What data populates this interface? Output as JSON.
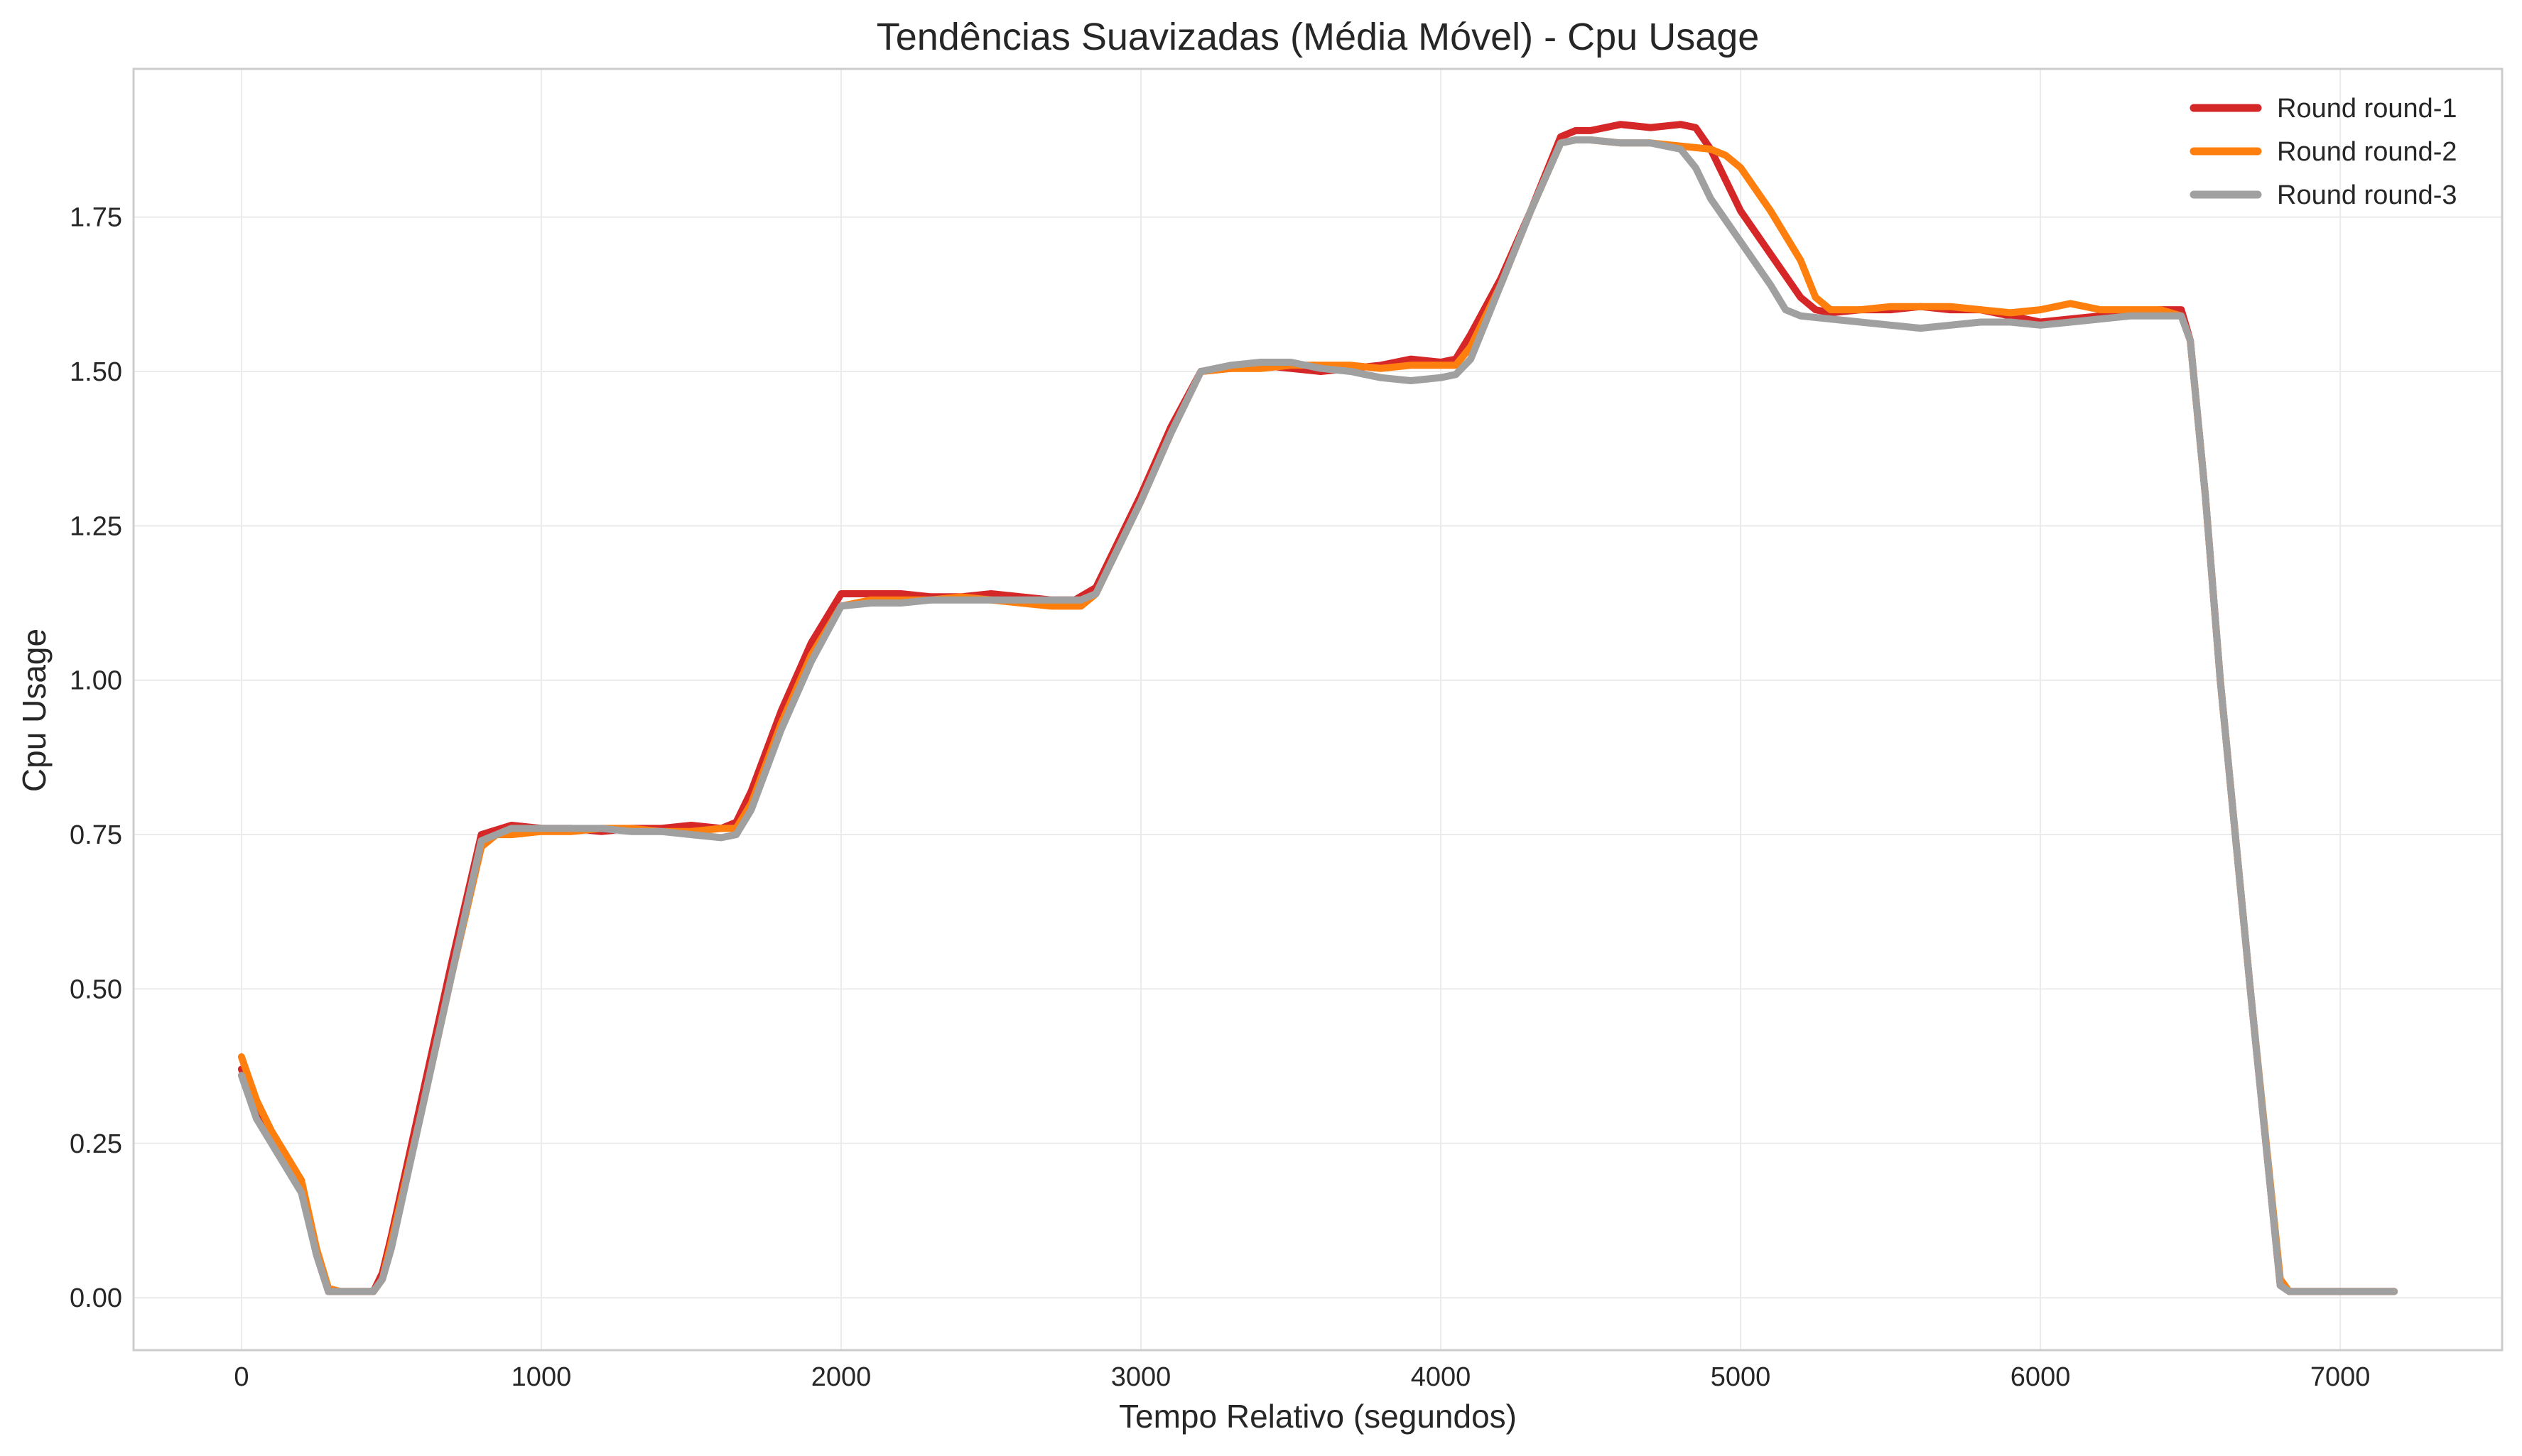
{
  "chart_data": {
    "type": "line",
    "title": "Tendências Suavizadas (Média Móvel) - Cpu Usage",
    "xlabel": "Tempo Relativo (segundos)",
    "ylabel": "Cpu Usage",
    "xlim": [
      -360,
      7540
    ],
    "ylim": [
      -0.085,
      1.99
    ],
    "xticks": [
      0,
      1000,
      2000,
      3000,
      4000,
      5000,
      6000,
      7000
    ],
    "xtick_labels": [
      "0",
      "1000",
      "2000",
      "3000",
      "4000",
      "5000",
      "6000",
      "7000"
    ],
    "yticks": [
      0,
      0.25,
      0.5,
      0.75,
      1.0,
      1.25,
      1.5,
      1.75
    ],
    "ytick_labels": [
      "0.00",
      "0.25",
      "0.50",
      "0.75",
      "1.00",
      "1.25",
      "1.50",
      "1.75"
    ],
    "grid": true,
    "legend_position": "top-right",
    "series": [
      {
        "name": "Round round-1",
        "color": "#d62728",
        "x": [
          0,
          50,
          100,
          150,
          200,
          250,
          290,
          330,
          380,
          440,
          470,
          500,
          600,
          700,
          800,
          900,
          1000,
          1100,
          1200,
          1300,
          1400,
          1500,
          1600,
          1650,
          1700,
          1800,
          1900,
          2000,
          2100,
          2200,
          2300,
          2400,
          2500,
          2600,
          2700,
          2780,
          2850,
          2900,
          3000,
          3100,
          3200,
          3300,
          3400,
          3500,
          3600,
          3700,
          3800,
          3900,
          4000,
          4050,
          4100,
          4200,
          4300,
          4400,
          4450,
          4500,
          4600,
          4700,
          4800,
          4850,
          4900,
          5000,
          5100,
          5200,
          5250,
          5300,
          5400,
          5500,
          5600,
          5700,
          5800,
          5900,
          6000,
          6100,
          6200,
          6300,
          6400,
          6470,
          6500,
          6550,
          6600,
          6700,
          6800,
          6830,
          6900,
          7000,
          7100,
          7180
        ],
        "y": [
          0.37,
          0.31,
          0.26,
          0.22,
          0.18,
          0.07,
          0.01,
          0.01,
          0.01,
          0.01,
          0.04,
          0.1,
          0.32,
          0.54,
          0.75,
          0.765,
          0.76,
          0.76,
          0.755,
          0.76,
          0.76,
          0.765,
          0.76,
          0.77,
          0.82,
          0.95,
          1.06,
          1.14,
          1.14,
          1.14,
          1.135,
          1.135,
          1.14,
          1.135,
          1.13,
          1.13,
          1.15,
          1.2,
          1.3,
          1.41,
          1.5,
          1.505,
          1.51,
          1.505,
          1.5,
          1.505,
          1.51,
          1.52,
          1.515,
          1.52,
          1.56,
          1.65,
          1.76,
          1.88,
          1.89,
          1.89,
          1.9,
          1.895,
          1.9,
          1.895,
          1.86,
          1.76,
          1.69,
          1.62,
          1.6,
          1.595,
          1.6,
          1.6,
          1.605,
          1.6,
          1.6,
          1.59,
          1.58,
          1.585,
          1.59,
          1.595,
          1.6,
          1.6,
          1.55,
          1.3,
          1.0,
          0.5,
          0.02,
          0.01,
          0.01,
          0.01,
          0.01,
          0.01
        ]
      },
      {
        "name": "Round round-2",
        "color": "#ff7f0e",
        "x": [
          0,
          50,
          100,
          150,
          200,
          250,
          290,
          330,
          380,
          440,
          470,
          500,
          600,
          700,
          800,
          850,
          900,
          1000,
          1100,
          1200,
          1300,
          1400,
          1500,
          1600,
          1650,
          1700,
          1800,
          1900,
          2000,
          2100,
          2200,
          2300,
          2400,
          2500,
          2600,
          2700,
          2800,
          2850,
          2900,
          3000,
          3100,
          3200,
          3300,
          3400,
          3500,
          3600,
          3700,
          3800,
          3900,
          4000,
          4050,
          4100,
          4200,
          4300,
          4400,
          4450,
          4500,
          4600,
          4700,
          4800,
          4900,
          4950,
          5000,
          5100,
          5200,
          5250,
          5300,
          5400,
          5500,
          5600,
          5700,
          5800,
          5900,
          6000,
          6100,
          6200,
          6300,
          6400,
          6470,
          6500,
          6550,
          6600,
          6700,
          6800,
          6830,
          6900,
          7000,
          7100,
          7180
        ],
        "y": [
          0.39,
          0.32,
          0.27,
          0.23,
          0.19,
          0.08,
          0.015,
          0.01,
          0.01,
          0.01,
          0.03,
          0.09,
          0.3,
          0.52,
          0.73,
          0.75,
          0.75,
          0.755,
          0.755,
          0.76,
          0.76,
          0.755,
          0.755,
          0.76,
          0.76,
          0.8,
          0.93,
          1.04,
          1.12,
          1.13,
          1.13,
          1.13,
          1.135,
          1.13,
          1.125,
          1.12,
          1.12,
          1.14,
          1.19,
          1.29,
          1.4,
          1.5,
          1.505,
          1.505,
          1.51,
          1.51,
          1.51,
          1.505,
          1.51,
          1.51,
          1.51,
          1.54,
          1.64,
          1.76,
          1.87,
          1.875,
          1.875,
          1.87,
          1.87,
          1.865,
          1.86,
          1.85,
          1.83,
          1.76,
          1.68,
          1.62,
          1.6,
          1.6,
          1.605,
          1.605,
          1.605,
          1.6,
          1.595,
          1.6,
          1.61,
          1.6,
          1.6,
          1.6,
          1.59,
          1.55,
          1.3,
          1.0,
          0.5,
          0.03,
          0.01,
          0.01,
          0.01,
          0.01,
          0.01
        ]
      },
      {
        "name": "Round round-3",
        "color": "#a0a0a0",
        "x": [
          0,
          50,
          100,
          150,
          200,
          250,
          290,
          330,
          380,
          440,
          470,
          500,
          600,
          700,
          800,
          900,
          1000,
          1100,
          1200,
          1300,
          1400,
          1500,
          1600,
          1650,
          1700,
          1800,
          1900,
          2000,
          2100,
          2200,
          2300,
          2400,
          2500,
          2600,
          2700,
          2800,
          2850,
          2900,
          3000,
          3100,
          3200,
          3300,
          3400,
          3500,
          3600,
          3700,
          3800,
          3900,
          4000,
          4050,
          4100,
          4200,
          4300,
          4400,
          4450,
          4500,
          4600,
          4700,
          4800,
          4850,
          4900,
          5000,
          5100,
          5150,
          5200,
          5300,
          5400,
          5500,
          5600,
          5700,
          5800,
          5900,
          6000,
          6100,
          6200,
          6300,
          6400,
          6470,
          6500,
          6550,
          6600,
          6700,
          6800,
          6830,
          6900,
          7000,
          7100,
          7180
        ],
        "y": [
          0.36,
          0.29,
          0.25,
          0.21,
          0.17,
          0.07,
          0.01,
          0.01,
          0.01,
          0.01,
          0.03,
          0.08,
          0.3,
          0.52,
          0.74,
          0.76,
          0.76,
          0.76,
          0.76,
          0.755,
          0.755,
          0.75,
          0.745,
          0.75,
          0.79,
          0.92,
          1.03,
          1.12,
          1.125,
          1.125,
          1.13,
          1.13,
          1.13,
          1.13,
          1.13,
          1.13,
          1.14,
          1.19,
          1.29,
          1.4,
          1.5,
          1.51,
          1.515,
          1.515,
          1.505,
          1.5,
          1.49,
          1.485,
          1.49,
          1.495,
          1.52,
          1.64,
          1.76,
          1.87,
          1.875,
          1.875,
          1.87,
          1.87,
          1.86,
          1.83,
          1.78,
          1.71,
          1.64,
          1.6,
          1.59,
          1.585,
          1.58,
          1.575,
          1.57,
          1.575,
          1.58,
          1.58,
          1.575,
          1.58,
          1.585,
          1.59,
          1.59,
          1.59,
          1.55,
          1.3,
          1.0,
          0.5,
          0.02,
          0.01,
          0.01,
          0.01,
          0.01,
          0.01
        ]
      }
    ]
  }
}
